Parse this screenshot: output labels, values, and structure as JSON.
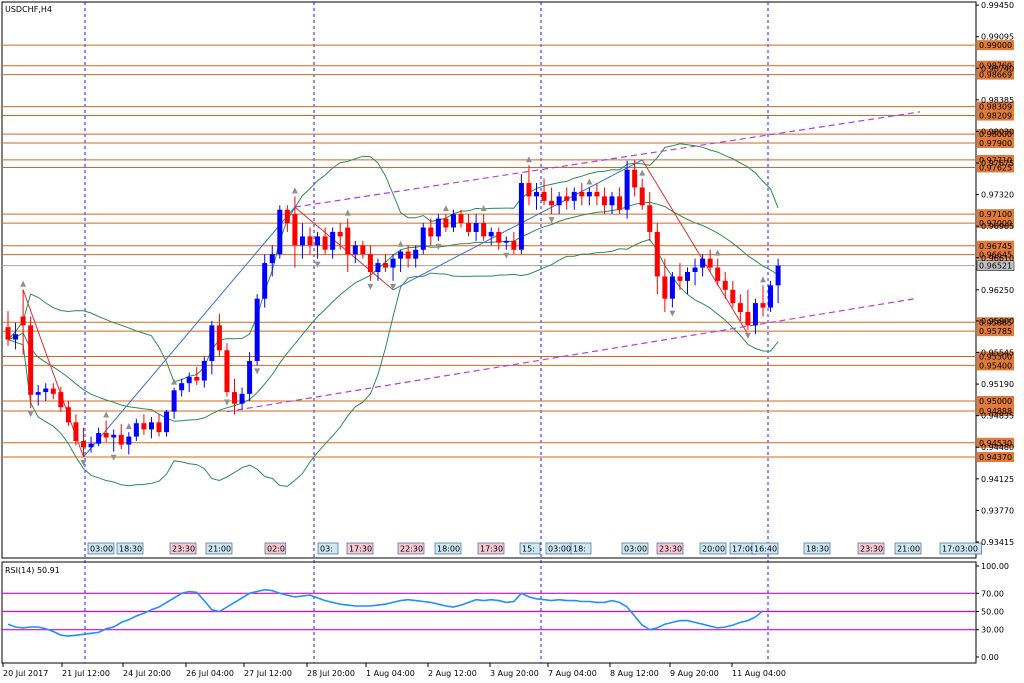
{
  "chart_data": {
    "type": "candlestick",
    "title": "USDCHF,H4",
    "main_ylim": [
      0.93235,
      0.99485
    ],
    "price_ticks": [
      "0.99450",
      "0.99095",
      "0.98740",
      "0.98385",
      "0.98030",
      "0.97675",
      "0.97320",
      "0.96965",
      "0.96610",
      "0.96250",
      "0.95900",
      "0.95545",
      "0.95190",
      "0.94835",
      "0.94480",
      "0.94125",
      "0.93770",
      "0.93415"
    ],
    "current_price": "0.96521",
    "levels": [
      "0.99000",
      "0.98769",
      "0.98669",
      "0.98309",
      "0.98209",
      "0.98000",
      "0.97900",
      "0.97710",
      "0.97625",
      "0.97100",
      "0.97000",
      "0.96745",
      "0.96645",
      "0.95885",
      "0.95785",
      "0.95500",
      "0.95400",
      "0.95000",
      "0.94888",
      "0.94530",
      "0.94370"
    ],
    "x_labels": [
      "20 Jul 2017",
      "21 Jul 12:00",
      "24 Jul 20:00",
      "26 Jul 04:00",
      "27 Jul 12:00",
      "28 Jul 20:00",
      "1 Aug 04:00",
      "2 Aug 12:00",
      "3 Aug 20:00",
      "7 Aug 04:00",
      "8 Aug 12:00",
      "9 Aug 20:00",
      "11 Aug 04:00"
    ],
    "session_times": [
      "03:00",
      "18:30",
      "23:30",
      "21:00",
      "02:0",
      "03:",
      "17:30",
      "22:30",
      "18:00",
      "17:30",
      "15:",
      "03:00",
      "18:",
      "03:00",
      "23:30",
      "20:00",
      "17:00",
      "16:40",
      "18:30",
      "23:30",
      "21:00",
      "17:03:00"
    ],
    "bars": [
      {
        "o": 0.9583,
        "h": 0.9601,
        "l": 0.9562,
        "c": 0.9569
      },
      {
        "o": 0.9569,
        "h": 0.9588,
        "l": 0.9558,
        "c": 0.9575
      },
      {
        "o": 0.9595,
        "h": 0.9625,
        "l": 0.9552,
        "c": 0.9585
      },
      {
        "o": 0.9585,
        "h": 0.9595,
        "l": 0.9492,
        "c": 0.9507
      },
      {
        "o": 0.9507,
        "h": 0.9518,
        "l": 0.9495,
        "c": 0.951
      },
      {
        "o": 0.951,
        "h": 0.952,
        "l": 0.95,
        "c": 0.9514
      },
      {
        "o": 0.9514,
        "h": 0.952,
        "l": 0.9502,
        "c": 0.9508
      },
      {
        "o": 0.951,
        "h": 0.9516,
        "l": 0.9488,
        "c": 0.9493
      },
      {
        "o": 0.9493,
        "h": 0.95,
        "l": 0.9472,
        "c": 0.9476
      },
      {
        "o": 0.9476,
        "h": 0.9485,
        "l": 0.945,
        "c": 0.9455
      },
      {
        "o": 0.9455,
        "h": 0.947,
        "l": 0.9437,
        "c": 0.9448
      },
      {
        "o": 0.9448,
        "h": 0.946,
        "l": 0.9442,
        "c": 0.9452
      },
      {
        "o": 0.9452,
        "h": 0.947,
        "l": 0.9449,
        "c": 0.9464
      },
      {
        "o": 0.9464,
        "h": 0.9478,
        "l": 0.9454,
        "c": 0.9459
      },
      {
        "o": 0.9459,
        "h": 0.9468,
        "l": 0.9443,
        "c": 0.9462
      },
      {
        "o": 0.9462,
        "h": 0.9474,
        "l": 0.9446,
        "c": 0.9451
      },
      {
        "o": 0.9451,
        "h": 0.9465,
        "l": 0.944,
        "c": 0.946
      },
      {
        "o": 0.946,
        "h": 0.948,
        "l": 0.9455,
        "c": 0.9475
      },
      {
        "o": 0.9475,
        "h": 0.9485,
        "l": 0.9462,
        "c": 0.9468
      },
      {
        "o": 0.9468,
        "h": 0.9482,
        "l": 0.9458,
        "c": 0.9476
      },
      {
        "o": 0.9476,
        "h": 0.9485,
        "l": 0.946,
        "c": 0.9465
      },
      {
        "o": 0.9465,
        "h": 0.949,
        "l": 0.946,
        "c": 0.9488
      },
      {
        "o": 0.9488,
        "h": 0.9515,
        "l": 0.948,
        "c": 0.9512
      },
      {
        "o": 0.9512,
        "h": 0.9525,
        "l": 0.9505,
        "c": 0.952
      },
      {
        "o": 0.952,
        "h": 0.9532,
        "l": 0.951,
        "c": 0.9527
      },
      {
        "o": 0.9527,
        "h": 0.9538,
        "l": 0.9518,
        "c": 0.9523
      },
      {
        "o": 0.9523,
        "h": 0.955,
        "l": 0.9515,
        "c": 0.9545
      },
      {
        "o": 0.9545,
        "h": 0.959,
        "l": 0.953,
        "c": 0.9585
      },
      {
        "o": 0.9585,
        "h": 0.9598,
        "l": 0.955,
        "c": 0.9557
      },
      {
        "o": 0.9557,
        "h": 0.9565,
        "l": 0.9505,
        "c": 0.951
      },
      {
        "o": 0.951,
        "h": 0.9525,
        "l": 0.9485,
        "c": 0.9497
      },
      {
        "o": 0.9497,
        "h": 0.9515,
        "l": 0.949,
        "c": 0.9508
      },
      {
        "o": 0.9508,
        "h": 0.9555,
        "l": 0.95,
        "c": 0.9545
      },
      {
        "o": 0.9545,
        "h": 0.962,
        "l": 0.954,
        "c": 0.9615
      },
      {
        "o": 0.9615,
        "h": 0.9665,
        "l": 0.9605,
        "c": 0.9655
      },
      {
        "o": 0.9655,
        "h": 0.9675,
        "l": 0.964,
        "c": 0.9665
      },
      {
        "o": 0.9665,
        "h": 0.972,
        "l": 0.966,
        "c": 0.9715
      },
      {
        "o": 0.9715,
        "h": 0.972,
        "l": 0.969,
        "c": 0.97
      },
      {
        "o": 0.971,
        "h": 0.973,
        "l": 0.965,
        "c": 0.9675
      },
      {
        "o": 0.9675,
        "h": 0.97,
        "l": 0.966,
        "c": 0.9685
      },
      {
        "o": 0.9685,
        "h": 0.9695,
        "l": 0.9665,
        "c": 0.9675
      },
      {
        "o": 0.9675,
        "h": 0.969,
        "l": 0.966,
        "c": 0.9685
      },
      {
        "o": 0.9685,
        "h": 0.9695,
        "l": 0.9665,
        "c": 0.967
      },
      {
        "o": 0.967,
        "h": 0.9695,
        "l": 0.966,
        "c": 0.969
      },
      {
        "o": 0.969,
        "h": 0.97,
        "l": 0.967,
        "c": 0.9685
      },
      {
        "o": 0.9695,
        "h": 0.9705,
        "l": 0.9645,
        "c": 0.9665
      },
      {
        "o": 0.9665,
        "h": 0.968,
        "l": 0.9655,
        "c": 0.9675
      },
      {
        "o": 0.9675,
        "h": 0.968,
        "l": 0.966,
        "c": 0.9665
      },
      {
        "o": 0.9665,
        "h": 0.9675,
        "l": 0.9635,
        "c": 0.9645
      },
      {
        "o": 0.9645,
        "h": 0.966,
        "l": 0.9635,
        "c": 0.9655
      },
      {
        "o": 0.9655,
        "h": 0.9665,
        "l": 0.9645,
        "c": 0.965
      },
      {
        "o": 0.965,
        "h": 0.9665,
        "l": 0.9635,
        "c": 0.966
      },
      {
        "o": 0.966,
        "h": 0.967,
        "l": 0.9645,
        "c": 0.9668
      },
      {
        "o": 0.9668,
        "h": 0.9675,
        "l": 0.965,
        "c": 0.966
      },
      {
        "o": 0.966,
        "h": 0.9675,
        "l": 0.965,
        "c": 0.967
      },
      {
        "o": 0.967,
        "h": 0.97,
        "l": 0.9665,
        "c": 0.9695
      },
      {
        "o": 0.9695,
        "h": 0.9705,
        "l": 0.9675,
        "c": 0.9685
      },
      {
        "o": 0.9685,
        "h": 0.971,
        "l": 0.968,
        "c": 0.9705
      },
      {
        "o": 0.9705,
        "h": 0.971,
        "l": 0.969,
        "c": 0.9695
      },
      {
        "o": 0.9695,
        "h": 0.9715,
        "l": 0.969,
        "c": 0.971
      },
      {
        "o": 0.971,
        "h": 0.9715,
        "l": 0.9695,
        "c": 0.97
      },
      {
        "o": 0.97,
        "h": 0.971,
        "l": 0.9685,
        "c": 0.969
      },
      {
        "o": 0.969,
        "h": 0.971,
        "l": 0.968,
        "c": 0.97
      },
      {
        "o": 0.97,
        "h": 0.971,
        "l": 0.968,
        "c": 0.9685
      },
      {
        "o": 0.9685,
        "h": 0.9695,
        "l": 0.9675,
        "c": 0.969
      },
      {
        "o": 0.969,
        "h": 0.9695,
        "l": 0.967,
        "c": 0.9678
      },
      {
        "o": 0.9678,
        "h": 0.9685,
        "l": 0.967,
        "c": 0.968
      },
      {
        "o": 0.968,
        "h": 0.969,
        "l": 0.9665,
        "c": 0.967
      },
      {
        "o": 0.967,
        "h": 0.9755,
        "l": 0.9665,
        "c": 0.9745
      },
      {
        "o": 0.9745,
        "h": 0.9765,
        "l": 0.972,
        "c": 0.973
      },
      {
        "o": 0.973,
        "h": 0.9745,
        "l": 0.9715,
        "c": 0.9735
      },
      {
        "o": 0.9735,
        "h": 0.975,
        "l": 0.972,
        "c": 0.9725
      },
      {
        "o": 0.9725,
        "h": 0.974,
        "l": 0.971,
        "c": 0.972
      },
      {
        "o": 0.972,
        "h": 0.9735,
        "l": 0.971,
        "c": 0.973
      },
      {
        "o": 0.973,
        "h": 0.974,
        "l": 0.9715,
        "c": 0.9725
      },
      {
        "o": 0.9725,
        "h": 0.974,
        "l": 0.9715,
        "c": 0.9735
      },
      {
        "o": 0.9735,
        "h": 0.9745,
        "l": 0.972,
        "c": 0.973
      },
      {
        "o": 0.973,
        "h": 0.974,
        "l": 0.972,
        "c": 0.9735
      },
      {
        "o": 0.9735,
        "h": 0.9745,
        "l": 0.972,
        "c": 0.973
      },
      {
        "o": 0.973,
        "h": 0.974,
        "l": 0.971,
        "c": 0.972
      },
      {
        "o": 0.972,
        "h": 0.9735,
        "l": 0.971,
        "c": 0.973
      },
      {
        "o": 0.973,
        "h": 0.974,
        "l": 0.971,
        "c": 0.9715
      },
      {
        "o": 0.9715,
        "h": 0.977,
        "l": 0.9705,
        "c": 0.976
      },
      {
        "o": 0.976,
        "h": 0.9771,
        "l": 0.973,
        "c": 0.974
      },
      {
        "o": 0.974,
        "h": 0.975,
        "l": 0.9715,
        "c": 0.972
      },
      {
        "o": 0.972,
        "h": 0.9735,
        "l": 0.968,
        "c": 0.969
      },
      {
        "o": 0.969,
        "h": 0.97,
        "l": 0.962,
        "c": 0.964
      },
      {
        "o": 0.964,
        "h": 0.966,
        "l": 0.96,
        "c": 0.9615
      },
      {
        "o": 0.9615,
        "h": 0.9645,
        "l": 0.9605,
        "c": 0.964
      },
      {
        "o": 0.964,
        "h": 0.9655,
        "l": 0.9625,
        "c": 0.9635
      },
      {
        "o": 0.9635,
        "h": 0.965,
        "l": 0.962,
        "c": 0.9645
      },
      {
        "o": 0.9645,
        "h": 0.966,
        "l": 0.963,
        "c": 0.965
      },
      {
        "o": 0.965,
        "h": 0.9665,
        "l": 0.964,
        "c": 0.966
      },
      {
        "o": 0.966,
        "h": 0.967,
        "l": 0.9645,
        "c": 0.965
      },
      {
        "o": 0.965,
        "h": 0.966,
        "l": 0.963,
        "c": 0.9635
      },
      {
        "o": 0.9635,
        "h": 0.9645,
        "l": 0.9615,
        "c": 0.9625
      },
      {
        "o": 0.9625,
        "h": 0.9635,
        "l": 0.9605,
        "c": 0.961
      },
      {
        "o": 0.961,
        "h": 0.962,
        "l": 0.959,
        "c": 0.96
      },
      {
        "o": 0.96,
        "h": 0.9625,
        "l": 0.958,
        "c": 0.9585
      },
      {
        "o": 0.9585,
        "h": 0.9615,
        "l": 0.9575,
        "c": 0.961
      },
      {
        "o": 0.961,
        "h": 0.963,
        "l": 0.9595,
        "c": 0.9605
      },
      {
        "o": 0.9605,
        "h": 0.9635,
        "l": 0.96,
        "c": 0.963
      },
      {
        "o": 0.963,
        "h": 0.966,
        "l": 0.961,
        "c": 0.96521
      }
    ],
    "rsi": {
      "label": "RSI(14) 50.91",
      "ylim": [
        0,
        100
      ],
      "ticks": [
        "100.00",
        "70.00",
        "50.00",
        "30.00",
        "0.00"
      ],
      "levels": [
        70,
        50,
        30
      ],
      "values": [
        36,
        33,
        32,
        33,
        33,
        31,
        28,
        24,
        23,
        24,
        25,
        26,
        27,
        31,
        33,
        38,
        41,
        45,
        48,
        52,
        55,
        60,
        65,
        70,
        72,
        71,
        62,
        52,
        50,
        55,
        60,
        65,
        70,
        72,
        74,
        73,
        70,
        68,
        66,
        67,
        68,
        65,
        62,
        60,
        58,
        57,
        56,
        56,
        56,
        57,
        58,
        60,
        62,
        63,
        62,
        61,
        60,
        58,
        56,
        55,
        57,
        60,
        63,
        62,
        63,
        62,
        60,
        61,
        70,
        66,
        64,
        63,
        62,
        63,
        62,
        62,
        61,
        61,
        60,
        60,
        62,
        60,
        55,
        45,
        35,
        30,
        32,
        36,
        38,
        40,
        40,
        38,
        36,
        34,
        32,
        33,
        35,
        38,
        40,
        44,
        50.91
      ]
    }
  }
}
